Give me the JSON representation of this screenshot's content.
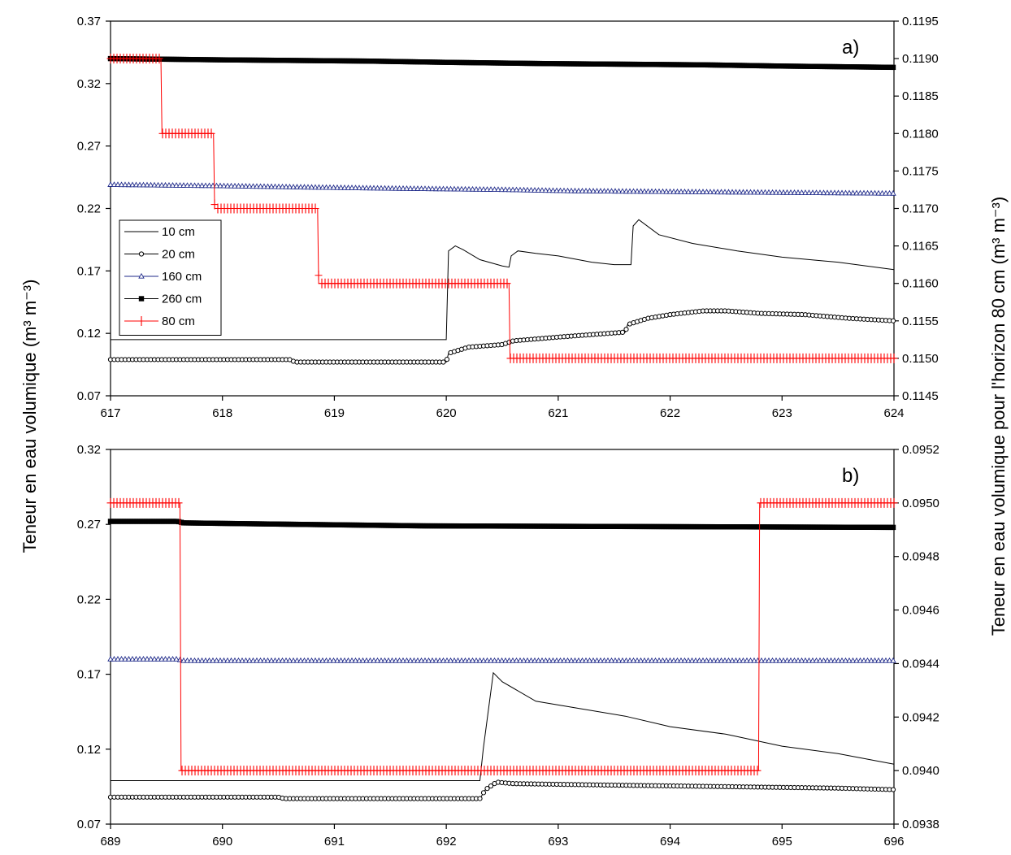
{
  "figure": {
    "left_axis_label": "Teneur en eau volumique (m³ m⁻³)",
    "right_axis_label": "Teneur en eau volumique pour l'horizon 80 cm (m³ m⁻³)"
  },
  "colors": {
    "s10": "#000000",
    "s20": "#000000",
    "s160": "#1f2a8a",
    "s260": "#000000",
    "s80": "#ff0000"
  },
  "chart_data": [
    {
      "type": "line",
      "panel_label": "a)",
      "xlim": [
        617,
        624
      ],
      "xticks": [
        "617",
        "618",
        "619",
        "620",
        "621",
        "622",
        "623",
        "624"
      ],
      "ylim_left": [
        0.07,
        0.37
      ],
      "yticks_left": [
        "0.07",
        "0.12",
        "0.17",
        "0.22",
        "0.27",
        "0.32",
        "0.37"
      ],
      "ylim_right": [
        0.1145,
        0.1195
      ],
      "yticks_right": [
        "0.1145",
        "0.1150",
        "0.1155",
        "0.1160",
        "0.1165",
        "0.1170",
        "0.1175",
        "0.1180",
        "0.1185",
        "0.1190",
        "0.1195"
      ],
      "legend": [
        "10 cm",
        "20 cm",
        "160 cm",
        "260 cm",
        "80 cm"
      ],
      "legend_position": "middle-left",
      "series": [
        {
          "name": "10 cm",
          "axis": "left",
          "marker": "none",
          "x": [
            617,
            620.0,
            620.02,
            620.08,
            620.15,
            620.3,
            620.5,
            620.56,
            620.58,
            620.64,
            620.8,
            621.0,
            621.3,
            621.5,
            621.65,
            621.67,
            621.72,
            621.9,
            622.2,
            622.6,
            623.0,
            623.5,
            624
          ],
          "y": [
            0.115,
            0.115,
            0.186,
            0.19,
            0.187,
            0.179,
            0.174,
            0.173,
            0.182,
            0.186,
            0.184,
            0.182,
            0.177,
            0.175,
            0.175,
            0.206,
            0.211,
            0.199,
            0.192,
            0.186,
            0.181,
            0.177,
            0.171
          ]
        },
        {
          "name": "20 cm",
          "axis": "left",
          "marker": "circle",
          "x": [
            617,
            618.6,
            618.65,
            620.0,
            620.02,
            620.2,
            620.5,
            620.6,
            621.0,
            621.6,
            621.62,
            621.8,
            622.0,
            622.3,
            622.5,
            622.8,
            623.2,
            623.6,
            624
          ],
          "y": [
            0.099,
            0.099,
            0.097,
            0.097,
            0.104,
            0.109,
            0.111,
            0.114,
            0.117,
            0.121,
            0.127,
            0.132,
            0.135,
            0.138,
            0.138,
            0.136,
            0.135,
            0.132,
            0.13
          ]
        },
        {
          "name": "160 cm",
          "axis": "left",
          "marker": "triangle",
          "x": [
            617,
            618.0,
            618.7,
            619.5,
            620.5,
            621.1,
            622.5,
            624
          ],
          "y": [
            0.239,
            0.238,
            0.237,
            0.236,
            0.235,
            0.234,
            0.233,
            0.232
          ]
        },
        {
          "name": "260 cm",
          "axis": "left",
          "marker": "square",
          "x": [
            617,
            618.0,
            619.3,
            620.0,
            620.9,
            622.3,
            623.0,
            624
          ],
          "y": [
            0.34,
            0.339,
            0.338,
            0.337,
            0.336,
            0.335,
            0.334,
            0.333
          ]
        },
        {
          "name": "80 cm",
          "axis": "right",
          "marker": "plus",
          "x": [
            617,
            617.45,
            617.46,
            617.92,
            617.93,
            618.85,
            618.86,
            620.56,
            620.57,
            624
          ],
          "y": [
            0.119,
            0.119,
            0.118,
            0.118,
            0.117,
            0.117,
            0.116,
            0.116,
            0.115,
            0.115
          ]
        }
      ]
    },
    {
      "type": "line",
      "panel_label": "b)",
      "xlim": [
        689,
        696
      ],
      "xticks": [
        "689",
        "690",
        "691",
        "692",
        "693",
        "694",
        "695",
        "696"
      ],
      "ylim_left": [
        0.07,
        0.32
      ],
      "yticks_left": [
        "0.07",
        "0.12",
        "0.17",
        "0.22",
        "0.27",
        "0.32"
      ],
      "ylim_right": [
        0.0938,
        0.0952
      ],
      "yticks_right": [
        "0.0938",
        "0.0940",
        "0.0942",
        "0.0944",
        "0.0946",
        "0.0948",
        "0.0950",
        "0.0952"
      ],
      "series": [
        {
          "name": "10 cm",
          "axis": "left",
          "marker": "none",
          "x": [
            689,
            692.3,
            692.33,
            692.42,
            692.5,
            692.8,
            693.2,
            693.6,
            694.0,
            694.5,
            695.0,
            695.5,
            696
          ],
          "y": [
            0.099,
            0.099,
            0.12,
            0.171,
            0.165,
            0.152,
            0.147,
            0.142,
            0.135,
            0.13,
            0.122,
            0.117,
            0.11
          ]
        },
        {
          "name": "20 cm",
          "axis": "left",
          "marker": "circle",
          "x": [
            689,
            690.5,
            690.55,
            692.3,
            692.35,
            692.45,
            692.6,
            693.5,
            694.5,
            695.5,
            696
          ],
          "y": [
            0.088,
            0.088,
            0.087,
            0.087,
            0.093,
            0.098,
            0.097,
            0.096,
            0.095,
            0.094,
            0.093
          ]
        },
        {
          "name": "160 cm",
          "axis": "left",
          "marker": "triangle",
          "x": [
            689,
            689.6,
            689.65,
            692.0,
            696
          ],
          "y": [
            0.18,
            0.18,
            0.179,
            0.179,
            0.179
          ]
        },
        {
          "name": "260 cm",
          "axis": "left",
          "marker": "square",
          "x": [
            689,
            689.6,
            689.65,
            690.7,
            691.8,
            696
          ],
          "y": [
            0.272,
            0.272,
            0.271,
            0.27,
            0.269,
            0.268
          ]
        },
        {
          "name": "80 cm",
          "axis": "right",
          "marker": "plus",
          "x": [
            689,
            689.62,
            689.63,
            694.79,
            694.8,
            696
          ],
          "y": [
            0.095,
            0.095,
            0.094,
            0.094,
            0.095,
            0.095
          ]
        }
      ]
    }
  ]
}
